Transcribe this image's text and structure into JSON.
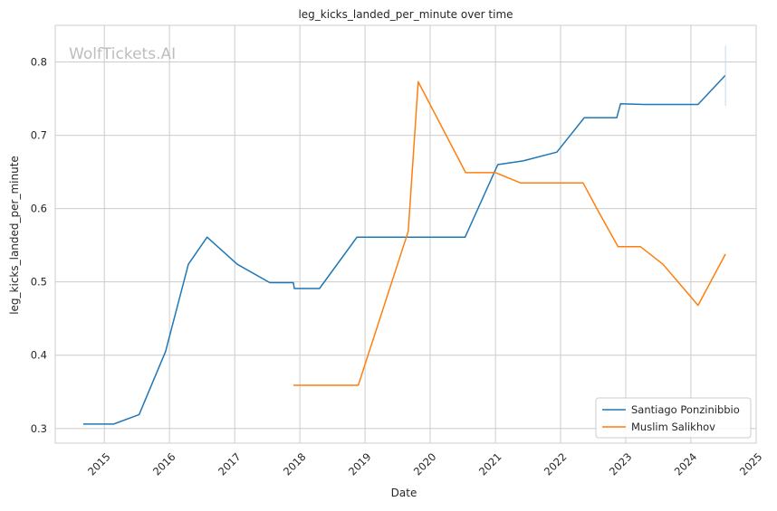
{
  "chart_data": {
    "type": "line",
    "title": "leg_kicks_landed_per_minute over time",
    "xlabel": "Date",
    "ylabel": "leg_kicks_landed_per_minute",
    "watermark": "WolfTickets.AI",
    "xlim": [
      "2014-04-01",
      "2025-01-01"
    ],
    "ylim": [
      0.28,
      0.85
    ],
    "x_ticks": [
      "2015-01-01",
      "2016-01-01",
      "2017-01-01",
      "2018-01-01",
      "2019-01-01",
      "2020-01-01",
      "2021-01-01",
      "2022-01-01",
      "2023-01-01",
      "2024-01-01",
      "2025-01-01"
    ],
    "x_tick_labels": [
      "2015",
      "2016",
      "2017",
      "2018",
      "2019",
      "2020",
      "2021",
      "2022",
      "2023",
      "2024",
      "2025"
    ],
    "y_ticks": [
      0.3,
      0.4,
      0.5,
      0.6,
      0.7,
      0.8
    ],
    "y_tick_labels": [
      "0.3",
      "0.4",
      "0.5",
      "0.6",
      "0.7",
      "0.8"
    ],
    "grid": true,
    "legend_position": "lower-right",
    "series": [
      {
        "name": "Santiago Ponzinibbio",
        "color": "#1f77b4",
        "points": [
          [
            "2014-09-05",
            0.306
          ],
          [
            "2015-02-22",
            0.306
          ],
          [
            "2015-07-15",
            0.319
          ],
          [
            "2015-12-10",
            0.405
          ],
          [
            "2016-04-16",
            0.524
          ],
          [
            "2016-07-30",
            0.561
          ],
          [
            "2017-01-15",
            0.524
          ],
          [
            "2017-07-16",
            0.499
          ],
          [
            "2017-11-25",
            0.499
          ],
          [
            "2017-12-01",
            0.491
          ],
          [
            "2018-04-21",
            0.491
          ],
          [
            "2018-11-17",
            0.561
          ],
          [
            "2020-07-15",
            0.561
          ],
          [
            "2021-01-14",
            0.66
          ],
          [
            "2021-06-05",
            0.665
          ],
          [
            "2021-12-11",
            0.677
          ],
          [
            "2022-05-14",
            0.724
          ],
          [
            "2022-11-12",
            0.724
          ],
          [
            "2022-12-03",
            0.743
          ],
          [
            "2023-04-15",
            0.742
          ],
          [
            "2024-02-10",
            0.742
          ],
          [
            "2024-07-13",
            0.782
          ]
        ]
      },
      {
        "name": "Muslim Salikhov",
        "color": "#ff7f0e",
        "points": [
          [
            "2017-11-25",
            0.359
          ],
          [
            "2018-11-24",
            0.359
          ],
          [
            "2019-08-31",
            0.569
          ],
          [
            "2019-10-26",
            0.773
          ],
          [
            "2020-07-18",
            0.649
          ],
          [
            "2021-01-02",
            0.649
          ],
          [
            "2021-05-22",
            0.635
          ],
          [
            "2022-05-07",
            0.635
          ],
          [
            "2022-07-30",
            0.597
          ],
          [
            "2022-11-19",
            0.548
          ],
          [
            "2023-03-25",
            0.548
          ],
          [
            "2023-07-29",
            0.524
          ],
          [
            "2024-02-10",
            0.468
          ],
          [
            "2024-07-13",
            0.538
          ]
        ]
      }
    ],
    "error_bar": {
      "x": "2024-07-13",
      "low": 0.74,
      "high": 0.822
    }
  }
}
